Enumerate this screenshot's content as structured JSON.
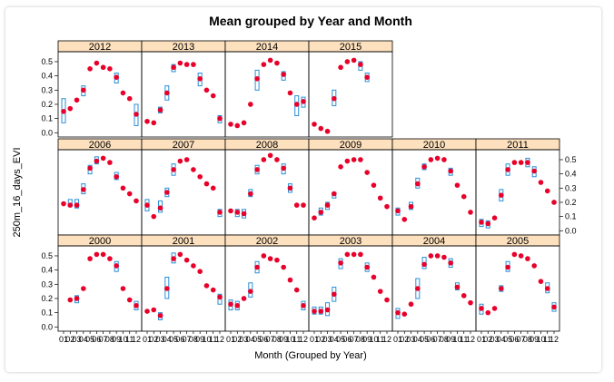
{
  "chart_data": {
    "type": "box_scatter_trellis",
    "title": "Mean grouped by Year and Month",
    "xlabel": "Month (Grouped by Year)",
    "ylabel": "250m_16_days_EVI",
    "ylim": [
      -0.03,
      0.57
    ],
    "yticks": [
      0.0,
      0.1,
      0.2,
      0.3,
      0.4,
      0.5
    ],
    "ytick_labels": [
      "0.0",
      "0.1",
      "0.2",
      "0.3",
      "0.4",
      "0.5"
    ],
    "xticks": [
      "01",
      "02",
      "03",
      "04",
      "05",
      "06",
      "07",
      "08",
      "09",
      "10",
      "11",
      "12"
    ],
    "point_color": "#e8002a",
    "box_color": "#2a8fd6",
    "strip_color": "#fde0bd",
    "panels": [
      {
        "year": "2012",
        "row": 0,
        "col": 0,
        "values": [
          0.15,
          0.17,
          0.23,
          0.3,
          0.45,
          0.49,
          0.46,
          0.45,
          0.39,
          0.28,
          0.24,
          0.13
        ],
        "boxes": [
          [
            0.07,
            0.24
          ],
          null,
          null,
          [
            0.26,
            0.33
          ],
          null,
          null,
          null,
          null,
          [
            0.35,
            0.42
          ],
          null,
          null,
          [
            0.05,
            0.2
          ]
        ]
      },
      {
        "year": "2013",
        "row": 0,
        "col": 1,
        "values": [
          0.08,
          0.07,
          0.16,
          0.28,
          0.46,
          0.49,
          0.48,
          0.48,
          0.38,
          0.3,
          0.26,
          0.1
        ],
        "boxes": [
          null,
          null,
          [
            0.14,
            0.18
          ],
          [
            0.23,
            0.33
          ],
          [
            0.43,
            0.48
          ],
          null,
          null,
          null,
          [
            0.33,
            0.42
          ],
          null,
          null,
          [
            0.07,
            0.12
          ]
        ]
      },
      {
        "year": "2014",
        "row": 0,
        "col": 2,
        "values": [
          0.06,
          0.05,
          0.07,
          0.2,
          0.38,
          0.48,
          0.51,
          0.49,
          0.41,
          0.28,
          0.2,
          0.22
        ],
        "boxes": [
          null,
          null,
          null,
          null,
          [
            0.3,
            0.44
          ],
          null,
          null,
          null,
          [
            0.37,
            0.43
          ],
          null,
          [
            0.12,
            0.26
          ],
          [
            0.18,
            0.25
          ]
        ]
      },
      {
        "year": "2015",
        "row": 0,
        "col": 3,
        "values": [
          0.06,
          0.03,
          0.01,
          0.24,
          0.46,
          0.5,
          0.51,
          0.48,
          0.39
        ],
        "boxes": [
          null,
          null,
          null,
          [
            0.19,
            0.3
          ],
          null,
          null,
          null,
          [
            0.44,
            0.5
          ],
          [
            0.36,
            0.42
          ]
        ]
      },
      {
        "year": "2006",
        "row": 1,
        "col": 0,
        "values": [
          0.19,
          0.18,
          0.18,
          0.29,
          0.44,
          0.49,
          0.51,
          0.48,
          0.38,
          0.3,
          0.26,
          0.21
        ],
        "boxes": [
          null,
          [
            0.17,
            0.22
          ],
          [
            0.16,
            0.22
          ],
          [
            0.26,
            0.33
          ],
          [
            0.4,
            0.46
          ],
          [
            0.47,
            0.52
          ],
          null,
          null,
          [
            0.36,
            0.41
          ],
          null,
          null,
          null
        ]
      },
      {
        "year": "2007",
        "row": 1,
        "col": 1,
        "values": [
          0.18,
          0.1,
          0.16,
          0.27,
          0.43,
          0.49,
          0.5,
          0.43,
          0.38,
          0.33,
          0.3,
          0.13
        ],
        "boxes": [
          [
            0.14,
            0.22
          ],
          null,
          [
            0.13,
            0.21
          ],
          [
            0.24,
            0.3
          ],
          [
            0.39,
            0.47
          ],
          null,
          null,
          null,
          null,
          null,
          null,
          [
            0.1,
            0.15
          ]
        ]
      },
      {
        "year": "2008",
        "row": 1,
        "col": 2,
        "values": [
          0.14,
          0.13,
          0.12,
          0.26,
          0.43,
          0.5,
          0.53,
          0.5,
          0.44,
          0.3,
          0.18,
          0.18
        ],
        "boxes": [
          null,
          [
            0.1,
            0.15
          ],
          [
            0.09,
            0.15
          ],
          [
            0.24,
            0.29
          ],
          [
            0.4,
            0.46
          ],
          null,
          null,
          null,
          [
            0.4,
            0.47
          ],
          [
            0.27,
            0.33
          ],
          null,
          null
        ]
      },
      {
        "year": "2009",
        "row": 1,
        "col": 3,
        "values": [
          0.09,
          0.13,
          0.18,
          0.26,
          0.45,
          0.49,
          0.5,
          0.5,
          0.41,
          0.32,
          0.23,
          0.17
        ],
        "boxes": [
          null,
          [
            0.11,
            0.16
          ],
          [
            0.15,
            0.2
          ],
          [
            0.23,
            0.27
          ],
          null,
          null,
          null,
          null,
          null,
          null,
          null,
          null
        ]
      },
      {
        "year": "2010",
        "row": 1,
        "col": 4,
        "values": [
          0.14,
          0.08,
          0.17,
          0.33,
          0.45,
          0.5,
          0.51,
          0.5,
          0.42,
          0.32,
          0.24,
          0.13
        ],
        "boxes": [
          [
            0.11,
            0.16
          ],
          null,
          [
            0.15,
            0.2
          ],
          [
            0.3,
            0.37
          ],
          [
            0.43,
            0.47
          ],
          null,
          null,
          null,
          [
            0.39,
            0.44
          ],
          null,
          null,
          null
        ]
      },
      {
        "year": "2011",
        "row": 1,
        "col": 5,
        "values": [
          0.06,
          0.05,
          0.09,
          0.25,
          0.43,
          0.48,
          0.48,
          0.48,
          0.42,
          0.34,
          0.28,
          0.2
        ],
        "boxes": [
          [
            0.03,
            0.08
          ],
          [
            0.02,
            0.07
          ],
          null,
          [
            0.21,
            0.29
          ],
          [
            0.39,
            0.47
          ],
          null,
          null,
          [
            0.45,
            0.51
          ],
          [
            0.38,
            0.45
          ],
          null,
          null,
          null
        ]
      },
      {
        "year": "2000",
        "row": 2,
        "col": 0,
        "values": [
          null,
          0.19,
          0.2,
          0.27,
          0.48,
          0.51,
          0.51,
          0.48,
          0.43,
          0.27,
          0.19,
          0.15
        ],
        "boxes": [
          null,
          null,
          [
            0.17,
            0.22
          ],
          null,
          null,
          null,
          null,
          null,
          [
            0.39,
            0.46
          ],
          null,
          null,
          [
            0.12,
            0.18
          ]
        ]
      },
      {
        "year": "2001",
        "row": 2,
        "col": 1,
        "values": [
          0.11,
          0.12,
          0.08,
          0.27,
          0.48,
          0.51,
          0.47,
          0.43,
          0.39,
          0.29,
          0.26,
          0.21
        ],
        "boxes": [
          null,
          null,
          [
            0.05,
            0.1
          ],
          [
            0.2,
            0.35
          ],
          [
            0.45,
            0.52
          ],
          null,
          null,
          null,
          null,
          null,
          null,
          [
            0.16,
            0.23
          ]
        ]
      },
      {
        "year": "2002",
        "row": 2,
        "col": 2,
        "values": [
          0.16,
          0.15,
          0.2,
          0.25,
          0.42,
          0.5,
          0.48,
          0.47,
          0.42,
          0.33,
          0.26,
          0.15
        ],
        "boxes": [
          [
            0.12,
            0.19
          ],
          [
            0.12,
            0.18
          ],
          null,
          [
            0.21,
            0.31
          ],
          [
            0.38,
            0.46
          ],
          null,
          null,
          null,
          null,
          null,
          null,
          [
            0.12,
            0.18
          ]
        ]
      },
      {
        "year": "2003",
        "row": 2,
        "col": 3,
        "values": [
          0.11,
          0.11,
          0.12,
          0.23,
          0.45,
          0.51,
          0.51,
          0.51,
          0.42,
          0.35,
          0.25,
          0.19
        ],
        "boxes": [
          [
            0.09,
            0.14
          ],
          [
            0.09,
            0.14
          ],
          [
            0.08,
            0.17
          ],
          [
            0.18,
            0.28
          ],
          [
            0.41,
            0.48
          ],
          null,
          null,
          null,
          [
            0.39,
            0.45
          ],
          null,
          null,
          null
        ]
      },
      {
        "year": "2004",
        "row": 2,
        "col": 4,
        "values": [
          0.1,
          0.09,
          0.16,
          0.27,
          0.44,
          0.5,
          0.5,
          0.49,
          0.45,
          0.28,
          0.22,
          0.17
        ],
        "boxes": [
          [
            0.06,
            0.13
          ],
          null,
          null,
          [
            0.2,
            0.34
          ],
          [
            0.41,
            0.49
          ],
          null,
          null,
          null,
          [
            0.42,
            0.48
          ],
          [
            0.26,
            0.31
          ],
          null,
          null
        ]
      },
      {
        "year": "2005",
        "row": 2,
        "col": 5,
        "values": [
          0.13,
          0.1,
          0.13,
          0.27,
          0.42,
          0.51,
          0.5,
          0.48,
          0.43,
          0.32,
          0.27,
          0.14
        ],
        "boxes": [
          [
            0.09,
            0.16
          ],
          null,
          null,
          [
            0.25,
            0.29
          ],
          [
            0.39,
            0.46
          ],
          null,
          null,
          null,
          null,
          null,
          [
            0.24,
            0.31
          ],
          [
            0.11,
            0.17
          ]
        ]
      }
    ]
  }
}
